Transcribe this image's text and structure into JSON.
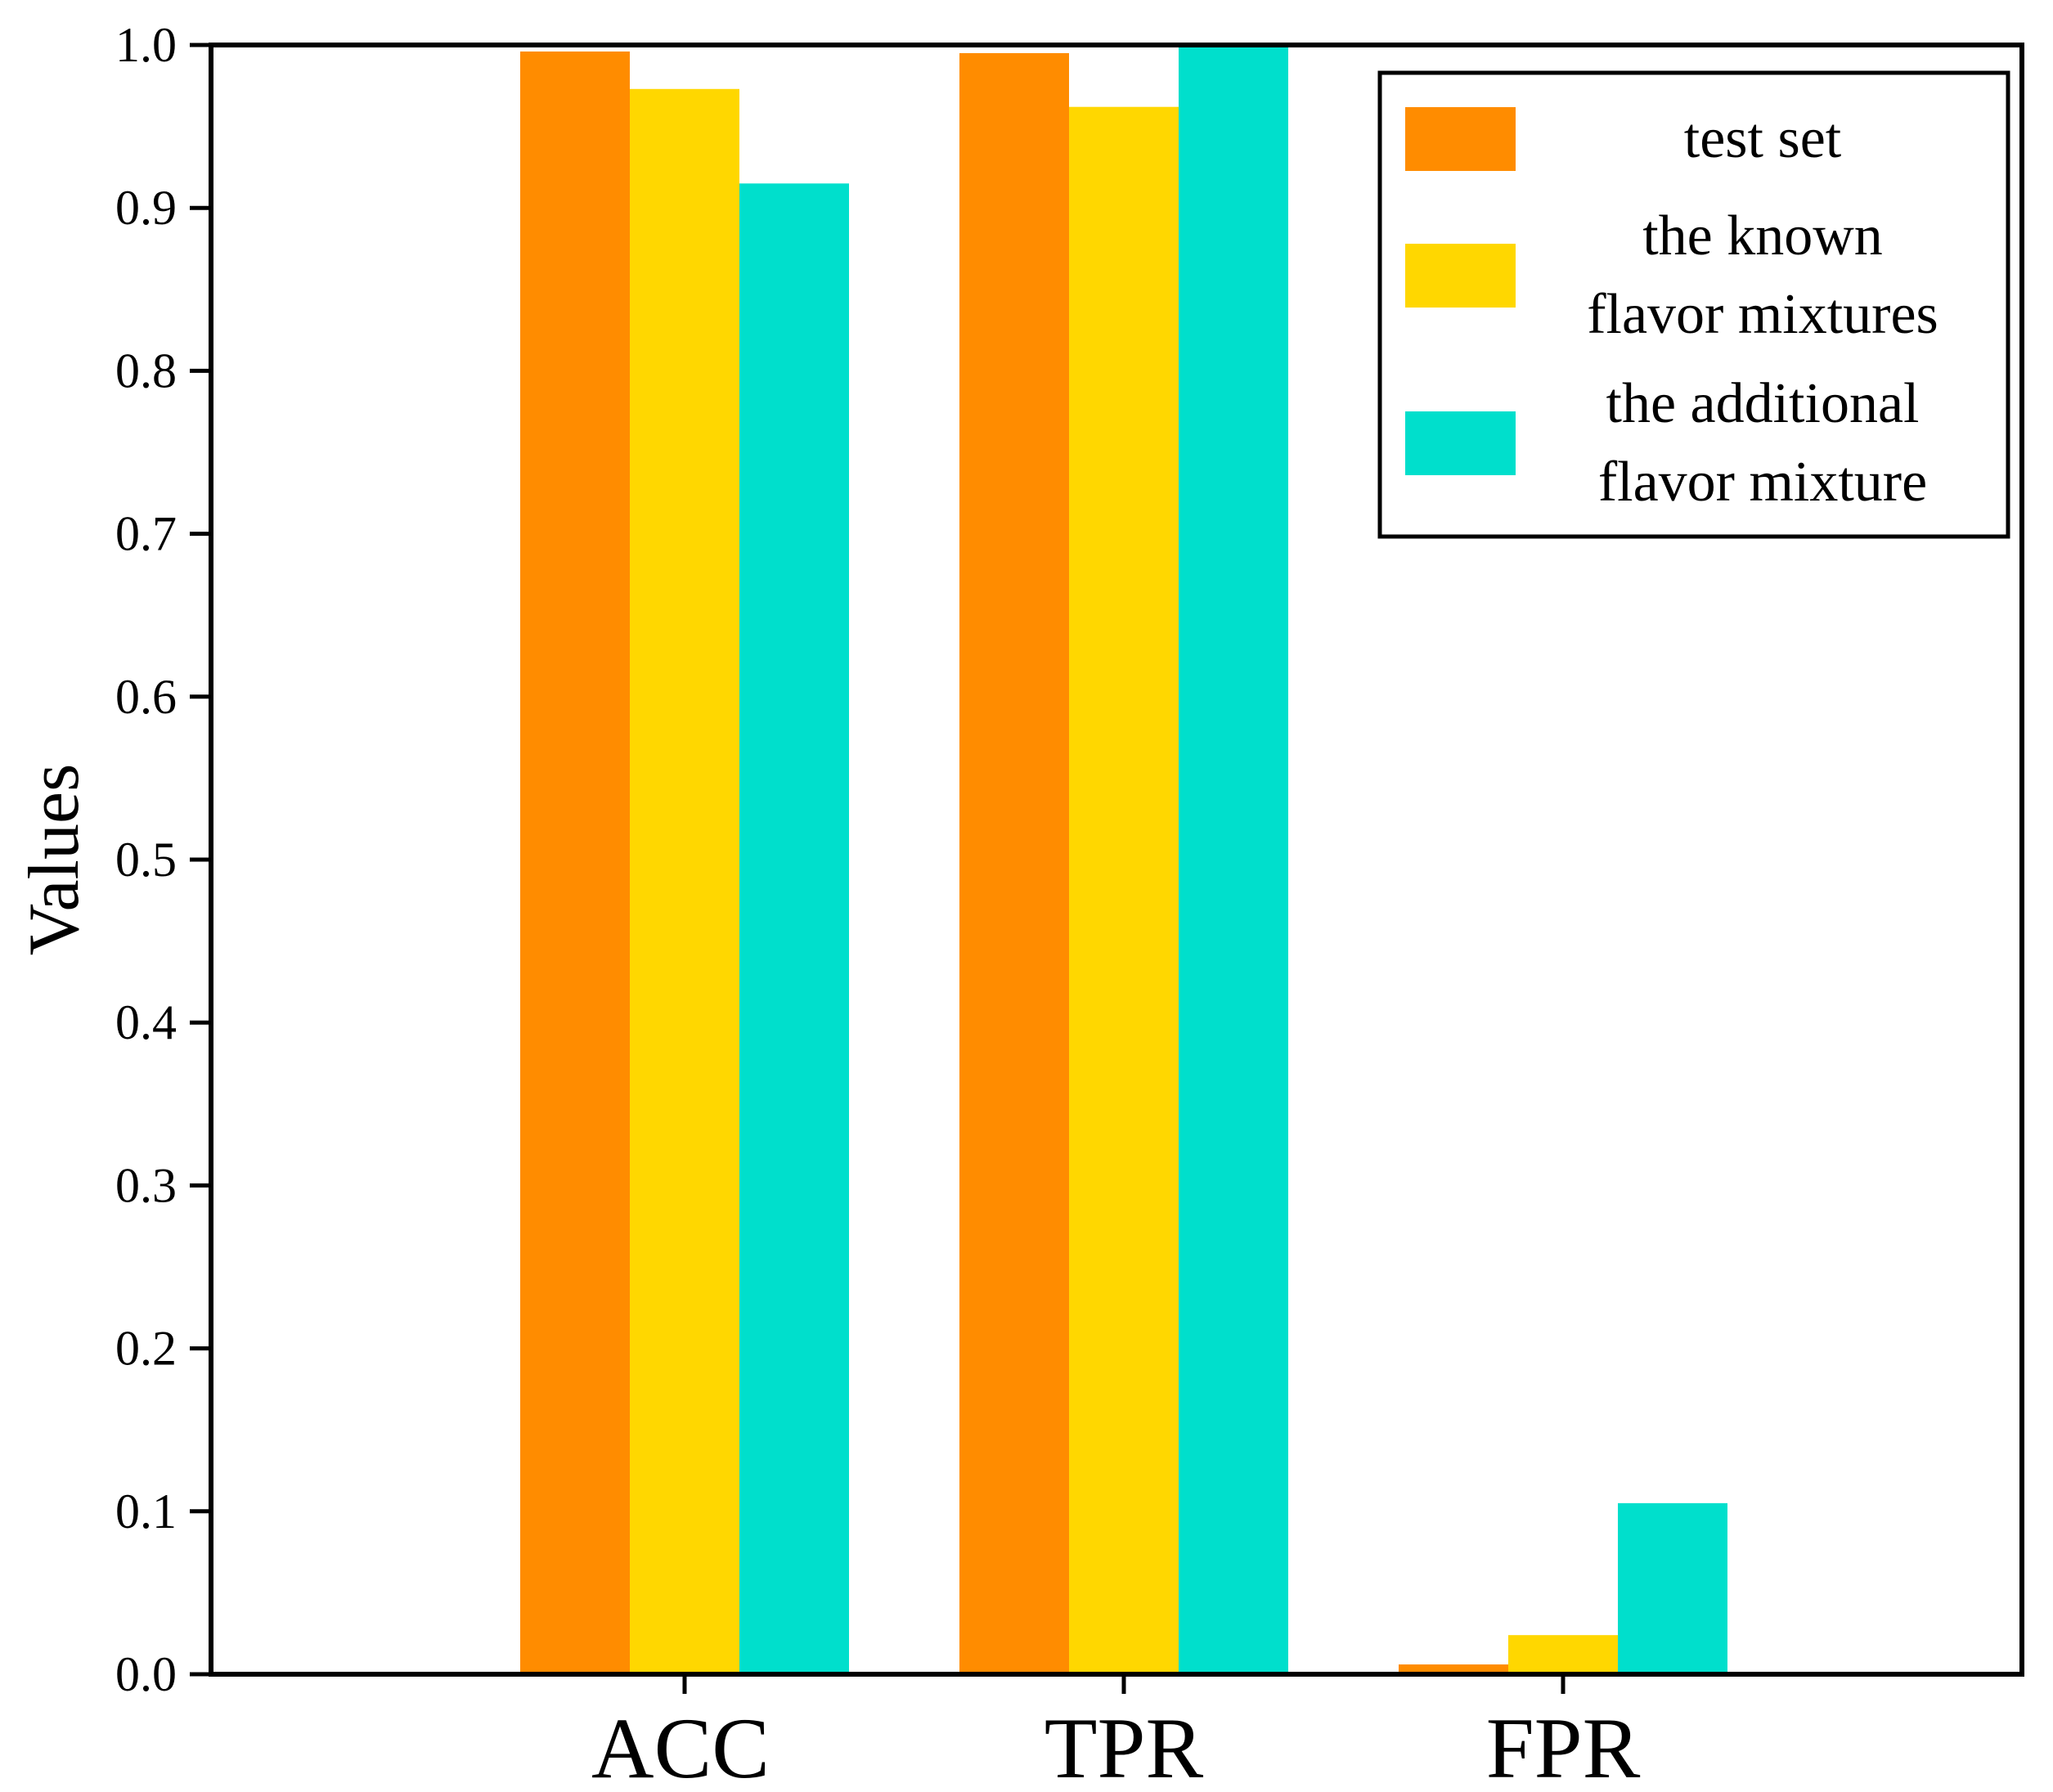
{
  "chart_data": {
    "type": "bar",
    "title": "",
    "xlabel": "",
    "ylabel": "Values",
    "ylim": [
      0,
      1
    ],
    "yticks": [
      "0.0",
      "0.1",
      "0.2",
      "0.3",
      "0.4",
      "0.5",
      "0.6",
      "0.7",
      "0.8",
      "0.9",
      "1.0"
    ],
    "categories": [
      "ACC",
      "TPR",
      "FPR"
    ],
    "grid": false,
    "legend_position": "top-right",
    "series": [
      {
        "name": "test set",
        "legend_lines": [
          "test set"
        ],
        "color": "#FF8C00",
        "values": [
          0.996,
          0.995,
          0.006
        ]
      },
      {
        "name": "the known flavor mixtures",
        "legend_lines": [
          "the known",
          "flavor mixtures"
        ],
        "color": "#FFD700",
        "values": [
          0.973,
          0.962,
          0.024
        ]
      },
      {
        "name": "the additional flavor mixture",
        "legend_lines": [
          "the additional",
          "flavor mixture"
        ],
        "color": "#00DFCC",
        "values": [
          0.915,
          1.0,
          0.105
        ]
      }
    ]
  }
}
